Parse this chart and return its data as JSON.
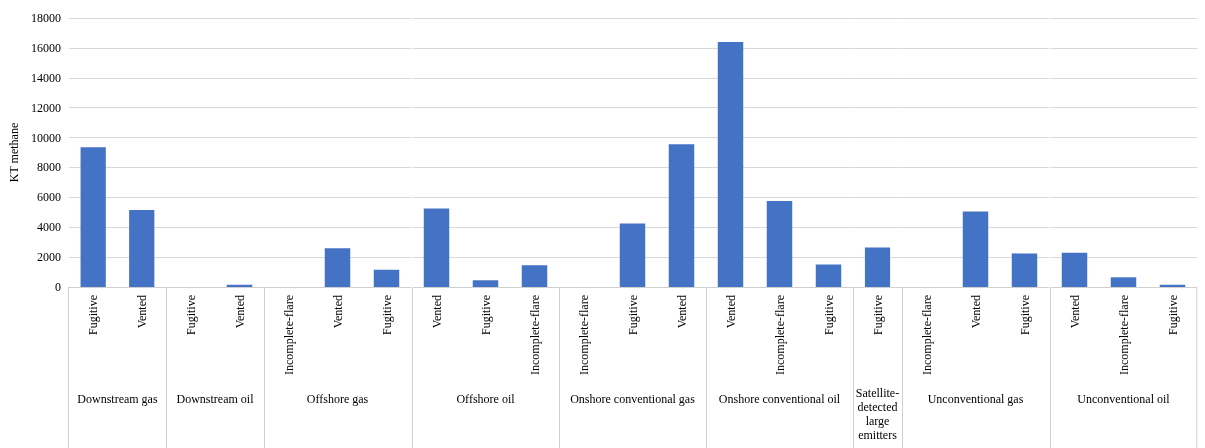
{
  "chart_data": [
    {
      "type": "bar",
      "ylabel": "KT methane",
      "xlabel": "Downstream gas",
      "categories": [
        "Fugitive",
        "Vented"
      ],
      "values": [
        9350,
        5150
      ],
      "color": "#4472c4",
      "ylim": [
        0,
        18000
      ],
      "yticks": [
        0,
        2000,
        4000,
        6000,
        8000,
        10000,
        12000,
        14000,
        16000,
        18000
      ],
      "grid": "y"
    },
    {
      "type": "bar",
      "xlabel": "Downstream oil",
      "categories": [
        "Fugitive",
        "Vented"
      ],
      "values": [
        0,
        150
      ],
      "color": "#4472c4",
      "ylim": [
        0,
        18000
      ],
      "yticks": [
        0,
        2000,
        4000,
        6000,
        8000,
        10000,
        12000,
        14000,
        16000,
        18000
      ],
      "grid": "y",
      "tick_labels": "x"
    },
    {
      "type": "bar",
      "xlabel": "Offshore gas",
      "categories": [
        "Incomplete-flare",
        "Vented",
        "Fugitive"
      ],
      "values": [
        0,
        2600,
        1150
      ],
      "color": "#4472c4",
      "ylim": [
        0,
        18000
      ],
      "yticks": [
        0,
        2000,
        4000,
        6000,
        8000,
        10000,
        12000,
        14000,
        16000,
        18000
      ],
      "grid": "y",
      "tick_labels": "x"
    },
    {
      "type": "bar",
      "xlabel": "Offshore oil",
      "categories": [
        "Vented",
        "Fugitive",
        "Incomplete-flare"
      ],
      "values": [
        5250,
        450,
        1450
      ],
      "color": "#4472c4",
      "ylim": [
        0,
        18000
      ],
      "yticks": [
        0,
        2000,
        4000,
        6000,
        8000,
        10000,
        12000,
        14000,
        16000,
        18000
      ],
      "grid": "y",
      "tick_labels": "x"
    },
    {
      "type": "bar",
      "xlabel": "Onshore conventional gas",
      "categories": [
        "Incomplete-flare",
        "Fugitive",
        "Vented"
      ],
      "values": [
        0,
        4250,
        9550
      ],
      "color": "#4472c4",
      "ylim": [
        0,
        18000
      ],
      "yticks": [
        0,
        2000,
        4000,
        6000,
        8000,
        10000,
        12000,
        14000,
        16000,
        18000
      ],
      "grid": "y",
      "tick_labels": "x"
    },
    {
      "type": "bar",
      "xlabel": "Onshore conventional oil",
      "categories": [
        "Vented",
        "Incomplete-flare",
        "Fugitive"
      ],
      "values": [
        16400,
        5750,
        1500
      ],
      "color": "#4472c4",
      "ylim": [
        0,
        18000
      ],
      "yticks": [
        0,
        2000,
        4000,
        6000,
        8000,
        10000,
        12000,
        14000,
        16000,
        18000
      ],
      "grid": "y",
      "tick_labels": "x"
    },
    {
      "type": "bar",
      "xlabel": "Satellite-detected large emitters",
      "categories": [
        "Fugitive"
      ],
      "values": [
        2650
      ],
      "color": "#4472c4",
      "ylim": [
        0,
        18000
      ],
      "yticks": [
        0,
        2000,
        4000,
        6000,
        8000,
        10000,
        12000,
        14000,
        16000,
        18000
      ],
      "grid": "y",
      "tick_labels": "x"
    },
    {
      "type": "bar",
      "xlabel": "Unconventional gas",
      "categories": [
        "Incomplete-flare",
        "Vented",
        "Fugitive"
      ],
      "values": [
        0,
        5050,
        2250
      ],
      "color": "#4472c4",
      "ylim": [
        0,
        18000
      ],
      "yticks": [
        0,
        2000,
        4000,
        6000,
        8000,
        10000,
        12000,
        14000,
        16000,
        18000
      ],
      "grid": "y",
      "tick_labels": "x"
    },
    {
      "type": "bar",
      "xlabel": "Unconventional oil",
      "categories": [
        "Vented",
        "Incomplete-flare",
        "Fugitive"
      ],
      "values": [
        2300,
        650,
        150
      ],
      "color": "#4472c4",
      "ylim": [
        0,
        18000
      ],
      "yticks": [
        0,
        2000,
        4000,
        6000,
        8000,
        10000,
        12000,
        14000,
        16000,
        18000
      ],
      "grid": "y",
      "tick_labels": "x"
    }
  ]
}
